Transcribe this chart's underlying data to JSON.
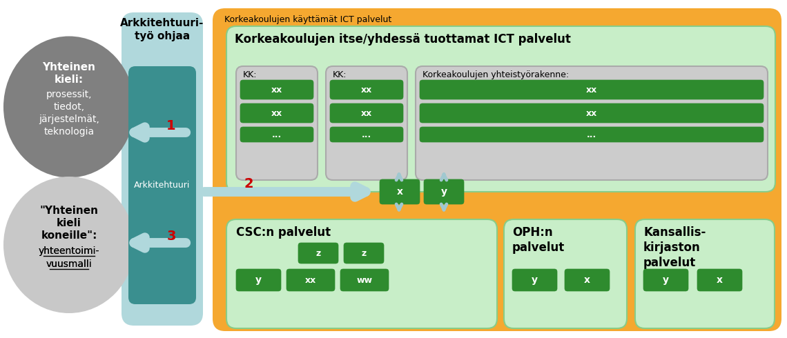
{
  "bg_color": "#ffffff",
  "orange_bg": "#F5A830",
  "light_green_bg": "#C8EEC8",
  "dark_green": "#2E8B2E",
  "teal_box": "#3A8F8F",
  "light_teal": "#B0D8DC",
  "gray_dark": "#808080",
  "gray_light": "#C8C8C8",
  "white": "#ffffff",
  "red": "#CC0000",
  "black": "#000000",
  "title_outer": "Korkeakoulujen käyttämät ICT palvelut",
  "title_inner": "Korkeakoulujen itse/yhdessä tuottamat ICT palvelut",
  "kk1_label": "KK:",
  "kk2_label": "KK:",
  "kk3_label": "Korkeakoulujen yhteistyörakenne:",
  "arch_title": "Arkkitehtuuri-\ntyö ohjaa",
  "arch_box_text": "Arkkitehtuuri",
  "ellipse1_lines": [
    "Yhteinen",
    "kieli:",
    "prosessit,",
    "tiedot,",
    "järjestelmät,",
    "teknologia"
  ],
  "ellipse2_bold": [
    "\"Yhteinen",
    "kieli",
    "koneille\":"
  ],
  "ellipse2_under": [
    "yhteentoimi-",
    "vuusmalli"
  ],
  "csc_title": "CSC:n palvelut",
  "oph_title": "OPH:n\npalvelut",
  "kansallis_title": "Kansallis-\nkirjaston\npalvelut"
}
